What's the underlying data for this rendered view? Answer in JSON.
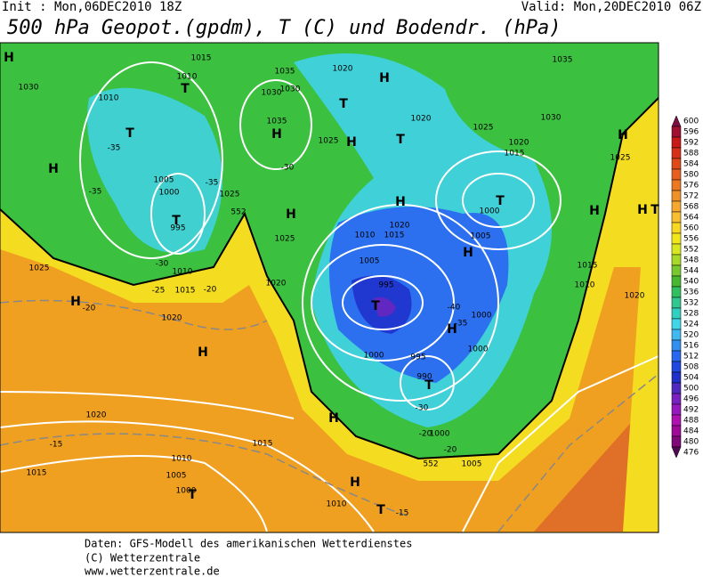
{
  "header": {
    "init": "Init : Mon,06DEC2010 18Z",
    "valid": "Valid: Mon,20DEC2010 06Z",
    "title": "500 hPa Geopot.(gpdm), T (C) und Bodendr. (hPa)"
  },
  "legend": {
    "levels": [
      600,
      596,
      592,
      588,
      584,
      580,
      576,
      572,
      568,
      564,
      560,
      556,
      552,
      548,
      544,
      540,
      536,
      532,
      528,
      524,
      520,
      516,
      512,
      508,
      504,
      500,
      496,
      492,
      488,
      484,
      480,
      476
    ],
    "colors": [
      "#7a1040",
      "#a01030",
      "#c81818",
      "#d83018",
      "#e04818",
      "#e86020",
      "#ec7820",
      "#f09028",
      "#f4a830",
      "#f8c030",
      "#f8d820",
      "#f0e818",
      "#d8e820",
      "#a8d828",
      "#78c830",
      "#48b830",
      "#30c060",
      "#30c890",
      "#30d0c0",
      "#40d8e8",
      "#40b8f0",
      "#3090f0",
      "#2868f0",
      "#2048e0",
      "#2030c8",
      "#5028c0",
      "#7820c0",
      "#9818c0",
      "#b010b0",
      "#a00898",
      "#800878",
      "#500850"
    ]
  },
  "map": {
    "labels": [
      "H",
      "1030",
      "1010",
      "T",
      "1015",
      "1010",
      "T",
      "-35",
      "1035",
      "1030",
      "1030",
      "1035",
      "H",
      "-30",
      "1020",
      "H",
      "T",
      "1025",
      "H",
      "T",
      "1020",
      "1025",
      "1030",
      "1035",
      "H",
      "1020",
      "1015",
      "1025",
      "H",
      "-35",
      "1005",
      "1000",
      "-35",
      "1025",
      "T",
      "995",
      "552",
      "H",
      "1025",
      "-30",
      "1025",
      "1010",
      "-25",
      "1015",
      "-20",
      "1020",
      "H",
      "-20",
      "1020",
      "H",
      "T",
      "1000",
      "1020",
      "1015",
      "1010",
      "H",
      "1005",
      "H",
      "1015",
      "1010",
      "1020",
      "1005",
      "995",
      "T",
      "-40",
      "1000",
      "-35",
      "H",
      "1000",
      "1000",
      "995",
      "990",
      "T",
      "-30",
      "1020",
      "1015",
      "-15",
      "-20",
      "1000",
      "-20",
      "552",
      "1005",
      "1010",
      "1015",
      "1005",
      "1000",
      "T",
      "H",
      "H",
      "1010",
      "T",
      "-15",
      "H",
      "H",
      "T"
    ]
  },
  "footer": {
    "line1": "Daten: GFS-Modell des amerikanischen Wetterdienstes",
    "line2": "(C) Wetterzentrale",
    "line3": "www.wetterzentrale.de"
  }
}
